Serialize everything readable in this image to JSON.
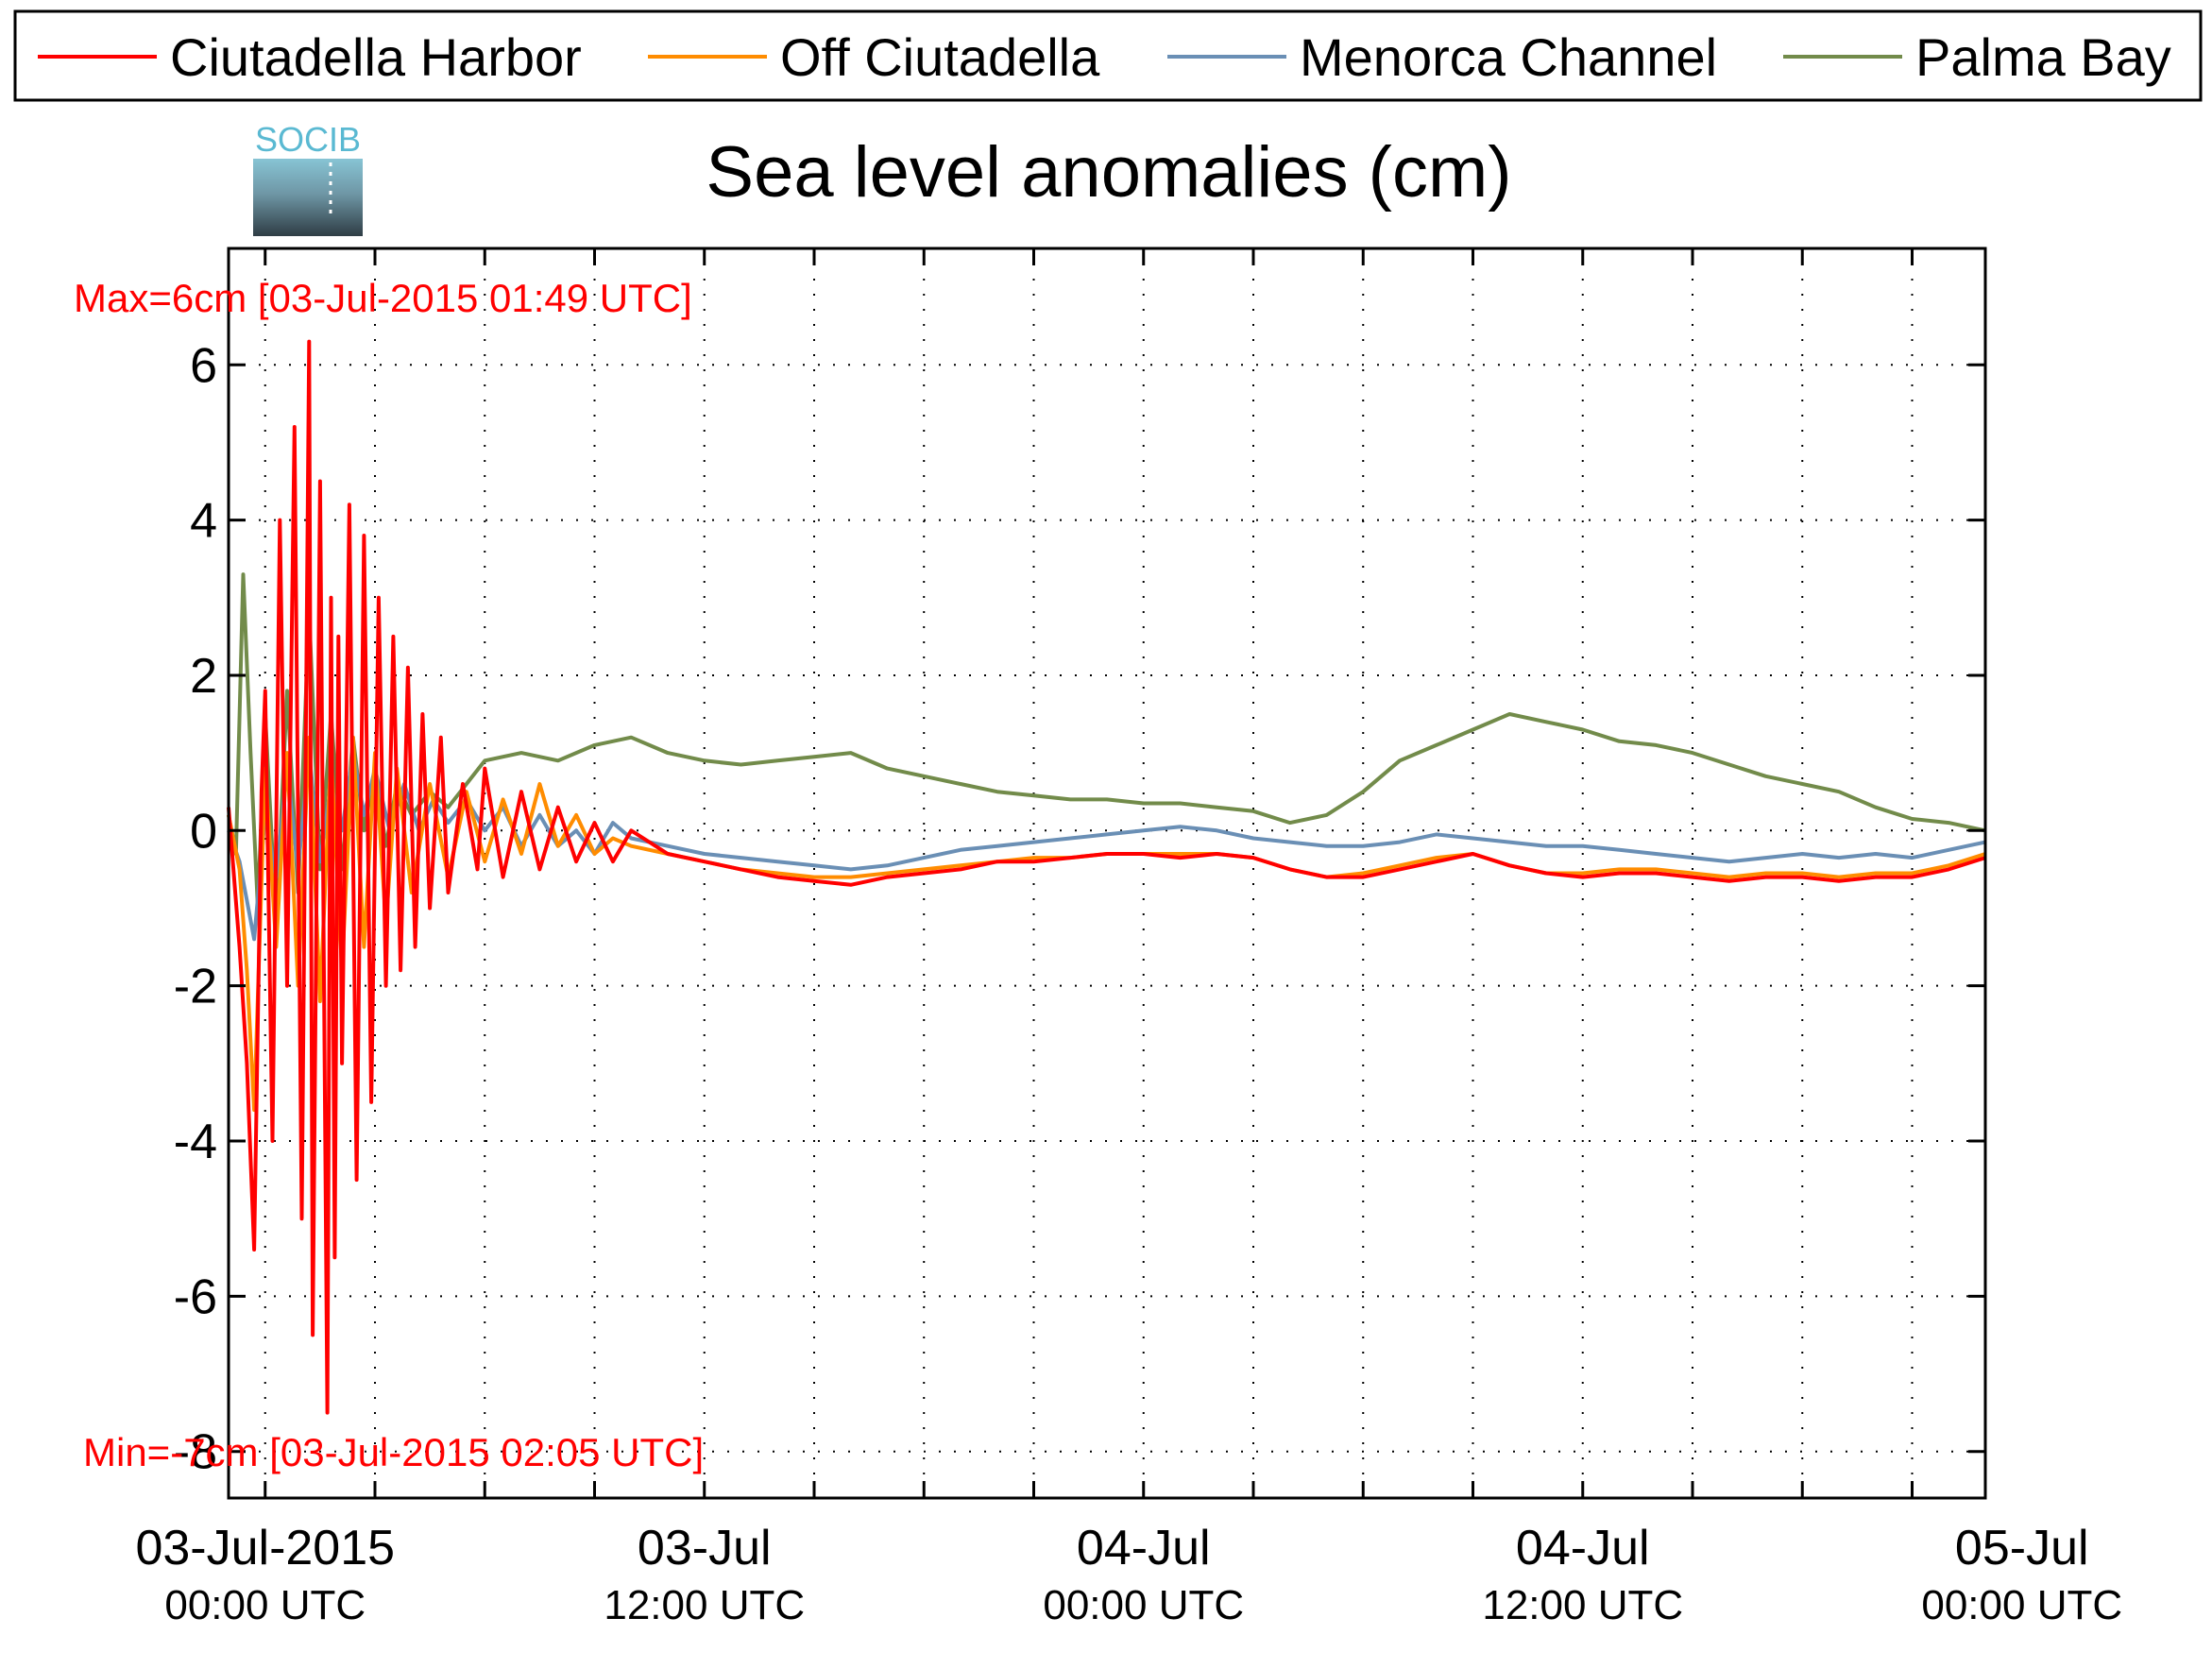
{
  "chart_data": {
    "type": "line",
    "title": "Sea level anomalies (cm)",
    "xlabel": "",
    "ylabel": "",
    "ylim": [
      -8.6,
      7.5
    ],
    "xlim_hours": [
      -1,
      47
    ],
    "grid": true,
    "legend_position": "top",
    "logo_text": "SOCIB",
    "y_ticks": [
      6,
      4,
      2,
      0,
      -2,
      -4,
      -6,
      -8
    ],
    "x_major_ticks": [
      {
        "hour": 0,
        "date": "03-Jul-2015",
        "time": "00:00 UTC"
      },
      {
        "hour": 12,
        "date": "03-Jul",
        "time": "12:00 UTC"
      },
      {
        "hour": 24,
        "date": "04-Jul",
        "time": "00:00 UTC"
      },
      {
        "hour": 36,
        "date": "04-Jul",
        "time": "12:00 UTC"
      },
      {
        "hour": 48,
        "date": "05-Jul",
        "time": "00:00 UTC"
      }
    ],
    "x_minor_tick_hours": [
      3,
      6,
      9,
      15,
      18,
      21,
      27,
      30,
      33,
      39,
      42,
      45
    ],
    "annotations": {
      "max": "Max=6cm [03-Jul-2015 01:49 UTC]",
      "min": "Min=-7cm [03-Jul-2015 02:05 UTC]"
    },
    "series": [
      {
        "name": "Ciutadella Harbor",
        "color": "#ff0000",
        "x_hours": [
          -1,
          -0.7,
          -0.5,
          -0.3,
          -0.1,
          0,
          0.2,
          0.4,
          0.6,
          0.8,
          1.0,
          1.2,
          1.3,
          1.5,
          1.7,
          1.8,
          1.9,
          2.0,
          2.1,
          2.3,
          2.5,
          2.7,
          2.9,
          3.1,
          3.3,
          3.5,
          3.7,
          3.9,
          4.1,
          4.3,
          4.5,
          4.8,
          5,
          5.4,
          5.8,
          6,
          6.5,
          7,
          7.5,
          8,
          8.5,
          9,
          9.5,
          10,
          11,
          12,
          13,
          14,
          15,
          16,
          17,
          18,
          19,
          20,
          21,
          22,
          23,
          24,
          25,
          26,
          27,
          28,
          29,
          30,
          31,
          32,
          33,
          34,
          35,
          36,
          37,
          38,
          39,
          40,
          41,
          42,
          43,
          44,
          45,
          46,
          47
        ],
        "values": [
          0.3,
          -1.5,
          -3.0,
          -5.4,
          0.5,
          1.8,
          -4.0,
          4.0,
          -2.0,
          5.2,
          -5.0,
          6.3,
          -6.5,
          4.5,
          -7.5,
          3.0,
          -5.5,
          2.5,
          -3.0,
          4.2,
          -4.5,
          3.8,
          -3.5,
          3.0,
          -2.0,
          2.5,
          -1.8,
          2.1,
          -1.5,
          1.5,
          -1.0,
          1.2,
          -0.8,
          0.6,
          -0.5,
          0.8,
          -0.6,
          0.5,
          -0.5,
          0.3,
          -0.4,
          0.1,
          -0.4,
          0.0,
          -0.3,
          -0.4,
          -0.5,
          -0.6,
          -0.65,
          -0.7,
          -0.6,
          -0.55,
          -0.5,
          -0.4,
          -0.4,
          -0.35,
          -0.3,
          -0.3,
          -0.35,
          -0.3,
          -0.35,
          -0.5,
          -0.6,
          -0.6,
          -0.5,
          -0.4,
          -0.3,
          -0.45,
          -0.55,
          -0.6,
          -0.55,
          -0.55,
          -0.6,
          -0.65,
          -0.6,
          -0.6,
          -0.65,
          -0.6,
          -0.6,
          -0.5,
          -0.35
        ]
      },
      {
        "name": "Off Ciutadella",
        "color": "#ff8c00",
        "x_hours": [
          -1,
          -0.7,
          -0.5,
          -0.3,
          0,
          0.3,
          0.6,
          0.9,
          1.2,
          1.5,
          1.8,
          2.1,
          2.4,
          2.7,
          3.0,
          3.3,
          3.6,
          4,
          4.5,
          5,
          5.5,
          6,
          6.5,
          7,
          7.5,
          8,
          8.5,
          9,
          9.5,
          10,
          11,
          12,
          13,
          14,
          15,
          16,
          17,
          18,
          19,
          20,
          21,
          22,
          23,
          24,
          25,
          26,
          27,
          28,
          29,
          30,
          31,
          32,
          33,
          34,
          35,
          36,
          37,
          38,
          39,
          40,
          41,
          42,
          43,
          44,
          45,
          46,
          47
        ],
        "values": [
          0.2,
          -0.5,
          -1.8,
          -3.6,
          0.8,
          -1.5,
          1.0,
          -2.0,
          1.2,
          -2.2,
          1.0,
          -1.8,
          1.2,
          -1.5,
          1.0,
          -1.2,
          0.8,
          -0.8,
          0.6,
          -0.6,
          0.5,
          -0.4,
          0.4,
          -0.3,
          0.6,
          -0.2,
          0.2,
          -0.3,
          -0.1,
          -0.2,
          -0.3,
          -0.4,
          -0.5,
          -0.55,
          -0.6,
          -0.6,
          -0.55,
          -0.5,
          -0.45,
          -0.4,
          -0.35,
          -0.35,
          -0.3,
          -0.3,
          -0.3,
          -0.3,
          -0.35,
          -0.5,
          -0.6,
          -0.55,
          -0.45,
          -0.35,
          -0.3,
          -0.45,
          -0.55,
          -0.55,
          -0.5,
          -0.5,
          -0.55,
          -0.6,
          -0.55,
          -0.55,
          -0.6,
          -0.55,
          -0.55,
          -0.45,
          -0.3
        ]
      },
      {
        "name": "Menorca Channel",
        "color": "#6a8fb5",
        "x_hours": [
          -1,
          -0.7,
          -0.5,
          -0.3,
          0,
          0.3,
          0.6,
          0.9,
          1.2,
          1.5,
          1.8,
          2.1,
          2.4,
          2.7,
          3.0,
          3.4,
          3.8,
          4.2,
          4.6,
          5,
          5.5,
          6,
          6.5,
          7,
          7.5,
          8,
          8.5,
          9,
          9.5,
          10,
          11,
          12,
          13,
          14,
          15,
          16,
          17,
          18,
          19,
          20,
          21,
          22,
          23,
          24,
          25,
          26,
          27,
          28,
          29,
          30,
          31,
          32,
          33,
          34,
          35,
          36,
          37,
          38,
          39,
          40,
          41,
          42,
          43,
          44,
          45,
          46,
          47
        ],
        "values": [
          0.0,
          -0.4,
          -0.9,
          -1.4,
          0.2,
          -0.6,
          0.8,
          -0.5,
          1.0,
          -0.4,
          0.6,
          0.0,
          1.0,
          0.2,
          0.8,
          0.0,
          0.6,
          0.0,
          0.4,
          0.1,
          0.4,
          0.0,
          0.3,
          -0.2,
          0.2,
          -0.2,
          0.0,
          -0.3,
          0.1,
          -0.1,
          -0.2,
          -0.3,
          -0.35,
          -0.4,
          -0.45,
          -0.5,
          -0.45,
          -0.35,
          -0.25,
          -0.2,
          -0.15,
          -0.1,
          -0.05,
          0.0,
          0.05,
          0.0,
          -0.1,
          -0.15,
          -0.2,
          -0.2,
          -0.15,
          -0.05,
          -0.1,
          -0.15,
          -0.2,
          -0.2,
          -0.25,
          -0.3,
          -0.35,
          -0.4,
          -0.35,
          -0.3,
          -0.35,
          -0.3,
          -0.35,
          -0.25,
          -0.15
        ]
      },
      {
        "name": "Palma Bay",
        "color": "#728b4a",
        "x_hours": [
          -1,
          -0.8,
          -0.6,
          -0.4,
          -0.2,
          0,
          0.3,
          0.6,
          0.9,
          1.2,
          1.5,
          1.8,
          2.1,
          2.4,
          2.7,
          3.0,
          3.3,
          3.6,
          4,
          4.5,
          5,
          5.5,
          6,
          7,
          8,
          9,
          10,
          11,
          12,
          13,
          14,
          15,
          16,
          17,
          18,
          19,
          20,
          21,
          22,
          23,
          24,
          25,
          26,
          27,
          28,
          29,
          30,
          31,
          32,
          33,
          34,
          35,
          36,
          37,
          38,
          39,
          40,
          41,
          42,
          43,
          44,
          45,
          46,
          47
        ],
        "values": [
          0.2,
          -0.3,
          3.3,
          1.0,
          -1.0,
          1.5,
          -1.2,
          1.8,
          -0.8,
          2.8,
          -0.5,
          1.5,
          -0.5,
          1.2,
          0.0,
          0.8,
          -0.2,
          0.6,
          0.2,
          0.5,
          0.3,
          0.6,
          0.9,
          1.0,
          0.9,
          1.1,
          1.2,
          1.0,
          0.9,
          0.85,
          0.9,
          0.95,
          1.0,
          0.8,
          0.7,
          0.6,
          0.5,
          0.45,
          0.4,
          0.4,
          0.35,
          0.35,
          0.3,
          0.25,
          0.1,
          0.2,
          0.5,
          0.9,
          1.1,
          1.3,
          1.5,
          1.4,
          1.3,
          1.15,
          1.1,
          1.0,
          0.85,
          0.7,
          0.6,
          0.5,
          0.3,
          0.15,
          0.1,
          0.0
        ]
      }
    ]
  }
}
